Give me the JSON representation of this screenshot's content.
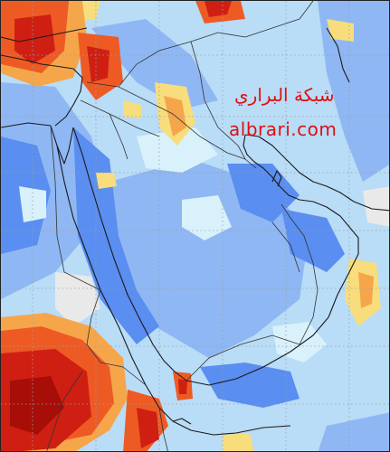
{
  "watermark": {
    "arabic": "شبكة البراري",
    "site": "albrari.com",
    "color": "#e01010"
  },
  "map": {
    "region": "Arabian Peninsula, Middle East and Horn of Africa",
    "palette": {
      "deep_blue": "#5a8ef0",
      "mid_blue": "#8fb7f3",
      "light_blue": "#b9dcf7",
      "pale_cyan": "#d8f1fb",
      "neutral": "#e9e9e9",
      "yellow": "#f7dd7c",
      "orange": "#f6a64a",
      "red_orange": "#ee5a24",
      "red": "#cf1f12",
      "dark_red": "#a80e08",
      "coast_line": "#1a1a1a",
      "grid": "#9aa0a8"
    },
    "gridlines": "dotted latitude/longitude"
  }
}
